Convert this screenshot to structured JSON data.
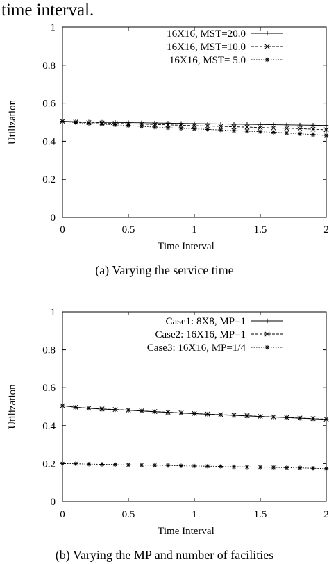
{
  "header_text": "time interval.",
  "chart_data": [
    {
      "type": "line",
      "caption": "(a) Varying the service time",
      "xlabel": "Time Interval",
      "ylabel": "Utilization",
      "xlim": [
        0,
        2
      ],
      "ylim": [
        0,
        1
      ],
      "x_ticks": [
        "0",
        "0.5",
        "1",
        "1.5",
        "2"
      ],
      "y_ticks": [
        "0",
        "0.2",
        "0.4",
        "0.6",
        "0.8",
        "1"
      ],
      "grid": false,
      "legend_position": "top-right",
      "x": [
        0,
        0.1,
        0.2,
        0.3,
        0.4,
        0.5,
        0.6,
        0.7,
        0.8,
        0.9,
        1.0,
        1.1,
        1.2,
        1.3,
        1.4,
        1.5,
        1.6,
        1.7,
        1.8,
        1.9,
        2.0
      ],
      "series": [
        {
          "name": "16X16, MST=20.0",
          "marker": "plus",
          "dash": "solid",
          "values": [
            0.505,
            0.503,
            0.501,
            0.5,
            0.499,
            0.498,
            0.497,
            0.496,
            0.495,
            0.494,
            0.493,
            0.492,
            0.491,
            0.49,
            0.489,
            0.488,
            0.487,
            0.486,
            0.485,
            0.484,
            0.483
          ]
        },
        {
          "name": "16X16, MST=10.0",
          "marker": "cross",
          "dash": "dashed",
          "values": [
            0.505,
            0.501,
            0.498,
            0.496,
            0.494,
            0.492,
            0.49,
            0.488,
            0.486,
            0.484,
            0.482,
            0.48,
            0.478,
            0.476,
            0.474,
            0.472,
            0.47,
            0.468,
            0.466,
            0.463,
            0.46
          ]
        },
        {
          "name": "16X16, MST=  5.0",
          "marker": "star",
          "dash": "dotted",
          "values": [
            0.505,
            0.498,
            0.494,
            0.49,
            0.486,
            0.482,
            0.478,
            0.474,
            0.471,
            0.468,
            0.465,
            0.462,
            0.459,
            0.456,
            0.453,
            0.45,
            0.447,
            0.443,
            0.439,
            0.435,
            0.43
          ]
        }
      ]
    },
    {
      "type": "line",
      "caption": "(b) Varying the MP and number of facilities",
      "xlabel": "Time Interval",
      "ylabel": "Utilization",
      "xlim": [
        0,
        2
      ],
      "ylim": [
        0,
        1
      ],
      "x_ticks": [
        "0",
        "0.5",
        "1",
        "1.5",
        "2"
      ],
      "y_ticks": [
        "0",
        "0.2",
        "0.4",
        "0.6",
        "0.8",
        "1"
      ],
      "grid": false,
      "legend_position": "top-right",
      "x": [
        0,
        0.1,
        0.2,
        0.3,
        0.4,
        0.5,
        0.6,
        0.7,
        0.8,
        0.9,
        1.0,
        1.1,
        1.2,
        1.3,
        1.4,
        1.5,
        1.6,
        1.7,
        1.8,
        1.9,
        2.0
      ],
      "series": [
        {
          "name": "Case1:     8X8, MP=1",
          "marker": "plus",
          "dash": "solid",
          "values": [
            0.505,
            0.497,
            0.491,
            0.487,
            0.484,
            0.481,
            0.477,
            0.473,
            0.47,
            0.466,
            0.463,
            0.46,
            0.457,
            0.454,
            0.451,
            0.448,
            0.445,
            0.442,
            0.439,
            0.436,
            0.433
          ]
        },
        {
          "name": "Case2: 16X16, MP=1",
          "marker": "cross",
          "dash": "dashed",
          "values": [
            0.505,
            0.497,
            0.492,
            0.488,
            0.485,
            0.482,
            0.478,
            0.474,
            0.471,
            0.467,
            0.464,
            0.461,
            0.458,
            0.455,
            0.452,
            0.449,
            0.446,
            0.443,
            0.44,
            0.437,
            0.434
          ]
        },
        {
          "name": "Case3: 16X16, MP=1/4",
          "marker": "star",
          "dash": "dotted",
          "values": [
            0.2,
            0.199,
            0.197,
            0.196,
            0.195,
            0.193,
            0.192,
            0.191,
            0.19,
            0.188,
            0.187,
            0.186,
            0.185,
            0.183,
            0.182,
            0.181,
            0.18,
            0.178,
            0.177,
            0.175,
            0.173
          ]
        }
      ]
    }
  ]
}
